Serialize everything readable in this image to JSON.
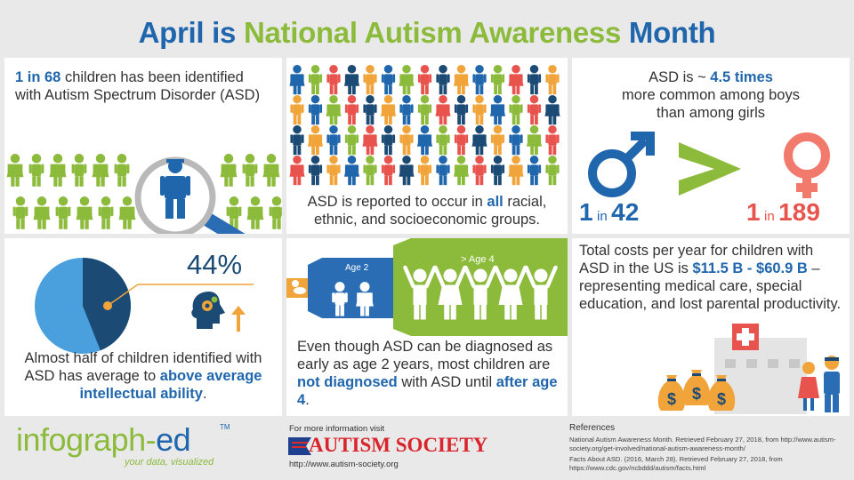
{
  "title": {
    "part1": "April is ",
    "part2": "National Autism Awareness",
    "part3": " Month"
  },
  "panel1": {
    "highlight": "1 in 68",
    "text": " children has been identified with Autism Spectrum Disorder (ASD)"
  },
  "panel2": {
    "text1": "ASD is reported to occur in ",
    "highlight": "all",
    "text2": " racial, ethnic, and socioeconomic groups."
  },
  "panel3": {
    "line1a": "ASD is ~ ",
    "line1b": "4.5 times",
    "line2": "more common among boys",
    "line3": "than among girls",
    "boys_num": "1",
    "boys_in": "in",
    "boys_den": "42",
    "girls_num": "1",
    "girls_in": "in",
    "girls_den": "189"
  },
  "panel4": {
    "percent": "44%",
    "percent_value": 44,
    "text1": "Almost half of children identified with ASD has average to ",
    "highlight": "above average intellectual ability",
    "text2": "."
  },
  "panel5": {
    "age2": "Age 2",
    "age4": "> Age 4",
    "text1": "Even though ASD can be diagnosed as early as age 2 years, most children are ",
    "highlight1": "not diagnosed",
    "text2": " with ASD until ",
    "highlight2": "after age 4",
    "text3": "."
  },
  "panel6": {
    "text1": "Total costs per year for children with ASD in the US is ",
    "highlight": "$11.5 B - $60.9 B",
    "text2": " – representing medical care, special education, and lost parental productivity."
  },
  "footer": {
    "logo_a": "infograph-",
    "logo_b": "ed",
    "logo_tm": "TM",
    "tagline": "your data, visualized",
    "more_info": "For more information visit",
    "society": "AUTISM SOCIETY",
    "society_url": "http://www.autism-society.org",
    "references_title": "References",
    "ref1": "National Autism Awareness Month. Retrieved February  27, 2018, from http://www.autism-society.org/get-involved/national-autism-awareness-month/",
    "ref2": "Facts About ASD. (2016, March 28). Retrieved February  27, 2018, from https://www.cdc.gov/ncbddd/autism/facts.html"
  },
  "colors": {
    "blue": "#1f66ad",
    "green": "#8cbb3c",
    "orange": "#f0a43a",
    "red": "#e9534d",
    "pink": "#f27a6d",
    "dark_navy": "#1b4a75",
    "light_blue": "#4aa0dc"
  }
}
